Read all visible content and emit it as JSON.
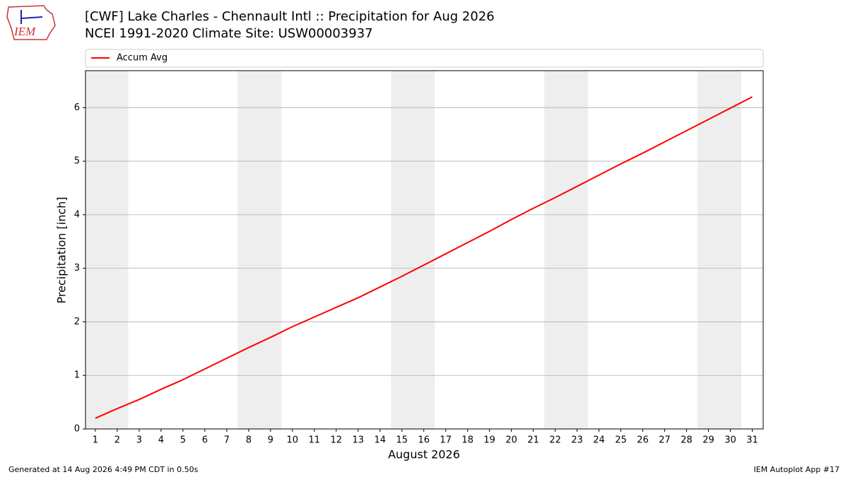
{
  "chart_data": {
    "type": "line",
    "title": "[CWF] Lake Charles - Chennault Intl :: Precipitation for Aug 2026",
    "subtitle": "NCEI 1991-2020 Climate Site: USW00003937",
    "xlabel": "August 2026",
    "ylabel": "Precipitation [inch]",
    "x": [
      1,
      2,
      3,
      4,
      5,
      6,
      7,
      8,
      9,
      10,
      11,
      12,
      13,
      14,
      15,
      16,
      17,
      18,
      19,
      20,
      21,
      22,
      23,
      24,
      25,
      26,
      27,
      28,
      29,
      30,
      31
    ],
    "series": [
      {
        "name": "Accum Avg",
        "color": "#ff0000",
        "values": [
          0.2,
          0.38,
          0.55,
          0.74,
          0.92,
          1.12,
          1.32,
          1.52,
          1.71,
          1.91,
          2.09,
          2.27,
          2.45,
          2.65,
          2.85,
          3.06,
          3.27,
          3.48,
          3.69,
          3.91,
          4.12,
          4.32,
          4.53,
          4.74,
          4.95,
          5.15,
          5.36,
          5.57,
          5.78,
          5.99,
          6.2
        ]
      }
    ],
    "xlim": [
      0.55,
      31.5
    ],
    "ylim": [
      0,
      6.69
    ],
    "xticks": [
      1,
      2,
      3,
      4,
      5,
      6,
      7,
      8,
      9,
      10,
      11,
      12,
      13,
      14,
      15,
      16,
      17,
      18,
      19,
      20,
      21,
      22,
      23,
      24,
      25,
      26,
      27,
      28,
      29,
      30,
      31
    ],
    "yticks": [
      0,
      1,
      2,
      3,
      4,
      5,
      6
    ],
    "grid": "y",
    "legend": "top",
    "shaded_spans": [
      [
        0.5,
        2.5
      ],
      [
        7.5,
        9.5
      ],
      [
        14.5,
        16.5
      ],
      [
        21.5,
        23.5
      ],
      [
        28.5,
        30.5
      ]
    ],
    "shade_color": "#eeeeee"
  },
  "logo": "IEM",
  "footer": {
    "left": "Generated at 14 Aug 2026 4:49 PM CDT in 0.50s",
    "right": "IEM Autoplot App #17"
  }
}
